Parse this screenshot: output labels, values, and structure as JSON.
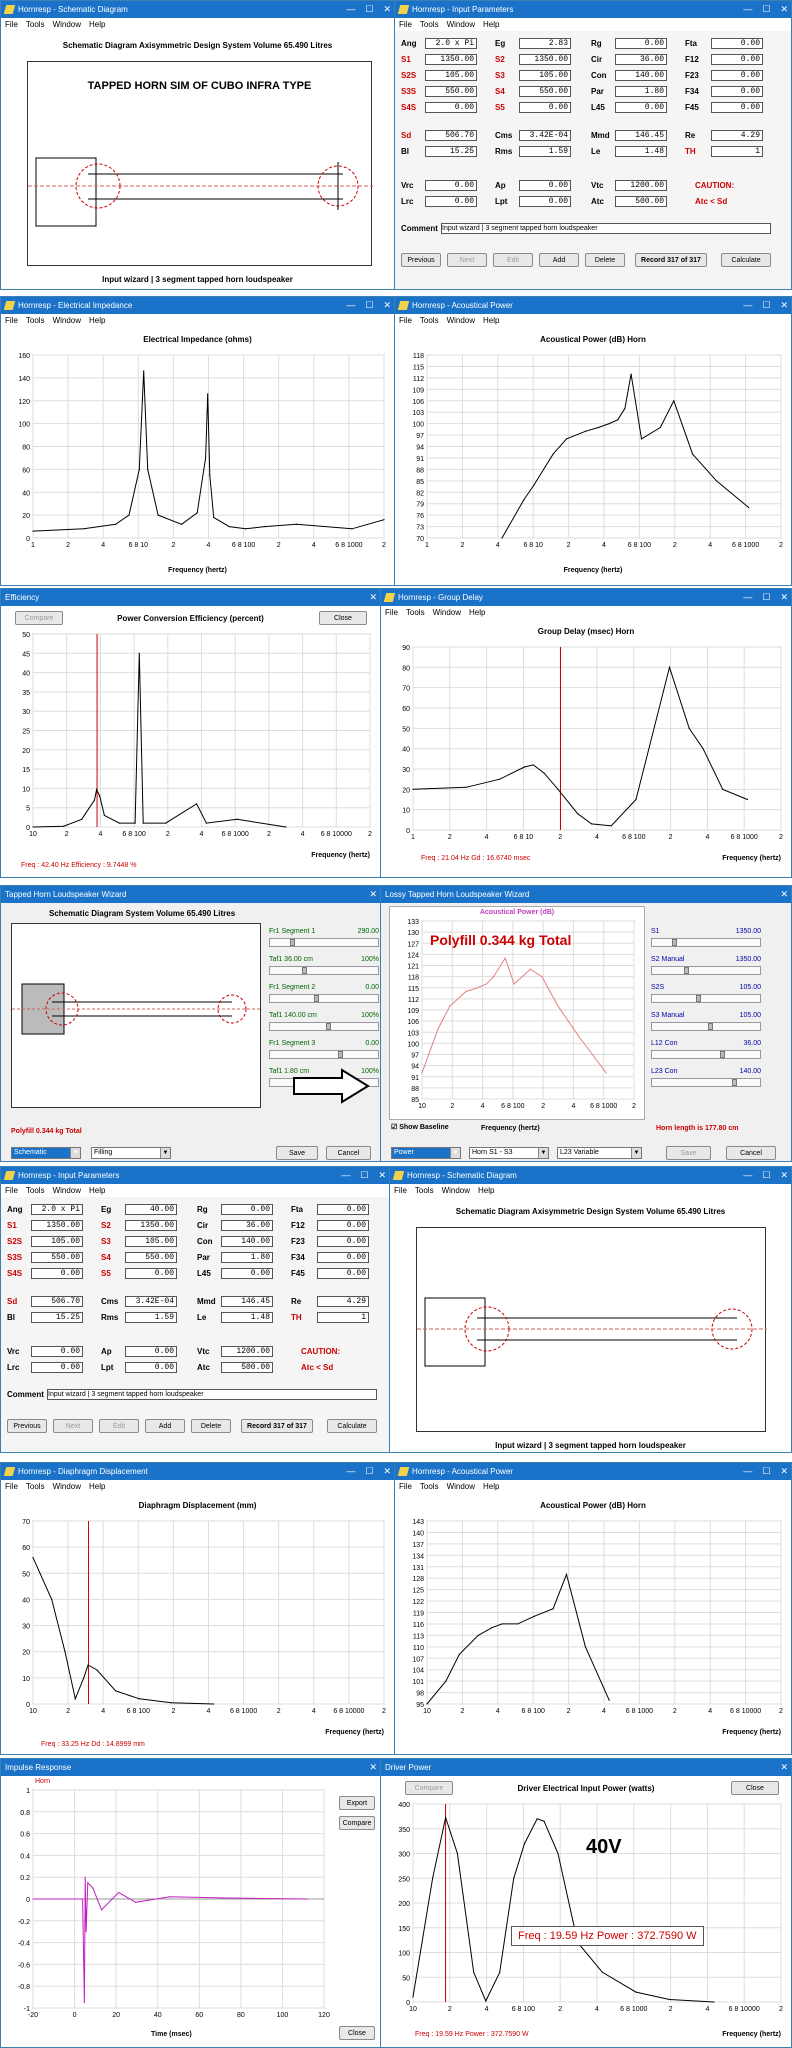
{
  "schematic1": {
    "title": "Hornresp - Schematic Diagram",
    "menu": [
      "File",
      "Tools",
      "Window",
      "Help"
    ],
    "header": "Schematic Diagram   Axisymmetric Design   System Volume 65.490 Litres",
    "label": "TAPPED HORN SIM OF CUBO INFRA TYPE",
    "footer": "Input wizard | 3 segment tapped horn loudspeaker"
  },
  "input1": {
    "title": "Hornresp - Input Parameters",
    "menu": [
      "File",
      "Tools",
      "Window",
      "Help"
    ],
    "rows1": [
      [
        "Ang",
        "2.0 x Pi",
        "Eg",
        "2.83",
        "Rg",
        "0.00",
        "Fta",
        "0.00"
      ],
      [
        "S1",
        "1350.00",
        "S2",
        "1350.00",
        "Cir",
        "36.00",
        "F12",
        "0.00"
      ],
      [
        "S2S",
        "105.00",
        "S3",
        "105.00",
        "Con",
        "140.00",
        "F23",
        "0.00"
      ],
      [
        "S3S",
        "550.00",
        "S4",
        "550.00",
        "Par",
        "1.80",
        "F34",
        "0.00"
      ],
      [
        "S4S",
        "0.00",
        "S5",
        "0.00",
        "L45",
        "0.00",
        "F45",
        "0.00"
      ]
    ],
    "rows2": [
      [
        "Sd",
        "506.70",
        "Cms",
        "3.42E-04",
        "Mmd",
        "146.45",
        "Re",
        "4.29"
      ],
      [
        "Bl",
        "15.25",
        "Rms",
        "1.59",
        "Le",
        "1.48",
        "TH",
        "1"
      ]
    ],
    "rows3": [
      [
        "Vrc",
        "0.00",
        "Ap",
        "0.00",
        "Vtc",
        "1200.00"
      ],
      [
        "Lrc",
        "0.00",
        "Lpt",
        "0.00",
        "Atc",
        "500.00"
      ]
    ],
    "caution": "CAUTION:",
    "caution2": "Atc < Sd",
    "comment_label": "Comment",
    "comment": "Input wizard | 3 segment tapped horn loudspeaker",
    "buttons": [
      "Previous",
      "Next",
      "Edit",
      "Add",
      "Delete"
    ],
    "record": "Record 317 of 317",
    "calc": "Calculate"
  },
  "impedance": {
    "title": "Hornresp - Electrical Impedance",
    "menu": [
      "File",
      "Tools",
      "Window",
      "Help"
    ],
    "chart_title": "Electrical Impedance (ohms)",
    "xlabel": "Frequency (hertz)",
    "yticks": [
      "160",
      "140",
      "120",
      "100",
      "80",
      "60",
      "40",
      "20",
      "0"
    ],
    "xticks": [
      "1",
      "2",
      "4",
      "6 8 10",
      "2",
      "4",
      "6 8 100",
      "2",
      "4",
      "6 8 1000",
      "2"
    ]
  },
  "acoustic1": {
    "title": "Hornresp - Acoustical Power",
    "menu": [
      "File",
      "Tools",
      "Window",
      "Help"
    ],
    "chart_title": "Acoustical Power (dB)   Horn",
    "xlabel": "Frequency (hertz)",
    "yticks": [
      "118",
      "115",
      "112",
      "109",
      "106",
      "103",
      "100",
      "97",
      "94",
      "91",
      "88",
      "85",
      "82",
      "79",
      "76",
      "73",
      "70"
    ],
    "xticks": [
      "1",
      "2",
      "4",
      "6 8 10",
      "2",
      "4",
      "6 8 100",
      "2",
      "4",
      "6 8 1000",
      "2"
    ]
  },
  "efficiency": {
    "title": "Efficiency",
    "compare": "Compare",
    "close": "Close",
    "chart_title": "Power Conversion Efficiency (percent)",
    "xlabel": "Frequency (hertz)",
    "yticks": [
      "50",
      "45",
      "40",
      "35",
      "30",
      "25",
      "20",
      "15",
      "10",
      "5",
      "0"
    ],
    "xticks": [
      "10",
      "2",
      "4",
      "6 8 100",
      "2",
      "4",
      "6 8 1000",
      "2",
      "4",
      "6 8 10000",
      "2"
    ],
    "readout": "Freq : 42.40 Hz    Efficiency : 9.7448 %"
  },
  "group_delay": {
    "title": "Hornresp - Group Delay",
    "menu": [
      "File",
      "Tools",
      "Window",
      "Help"
    ],
    "chart_title": "Group Delay (msec)   Horn",
    "xlabel": "Frequency (hertz)",
    "yticks": [
      "90",
      "80",
      "70",
      "60",
      "50",
      "40",
      "30",
      "20",
      "10",
      "0"
    ],
    "xticks": [
      "1",
      "2",
      "4",
      "6 8 10",
      "2",
      "4",
      "6 8 100",
      "2",
      "4",
      "6 8 1000",
      "2"
    ],
    "readout": "Freq : 21.04 Hz    Gd : 16.6740 msec"
  },
  "wizard": {
    "title": "Tapped Horn Loudspeaker Wizard",
    "header": "Schematic Diagram   System Volume 65.490 Litres",
    "params": [
      [
        "Fr1  Segment 1",
        "290.00"
      ],
      [
        "Taf1  36.00 cm",
        "100%"
      ],
      [
        "Fr1  Segment 2",
        "0.00"
      ],
      [
        "Taf1  140.00 cm",
        "100%"
      ],
      [
        "Fr1  Segment 3",
        "0.00"
      ],
      [
        "Taf1  1.80 cm",
        "100%"
      ]
    ],
    "fill": "Polyfill  0.344 kg  Total",
    "dropdown1": "Schematic",
    "dropdown2": "Filling",
    "save": "Save",
    "cancel": "Cancel"
  },
  "lossy": {
    "title": "Lossy Tapped Horn Loudspeaker Wizard",
    "chart_title": "Acoustical Power (dB)",
    "overlay": "Polyfill   0.344 kg   Total",
    "xlabel": "Frequency (hertz)",
    "show_baseline": "Show Baseline",
    "horn_length": "Horn length is 177.80 cm",
    "yticks": [
      "133",
      "130",
      "127",
      "124",
      "121",
      "118",
      "115",
      "112",
      "109",
      "106",
      "103",
      "100",
      "97",
      "94",
      "91",
      "88",
      "85"
    ],
    "xticks": [
      "10",
      "2",
      "4",
      "6 8 100",
      "2",
      "4",
      "6 8 1000",
      "2"
    ],
    "params": [
      [
        "S1",
        "1350.00"
      ],
      [
        "S2  Manual",
        "1350.00"
      ],
      [
        "S2S",
        "105.00"
      ],
      [
        "S3  Manual",
        "105.00"
      ],
      [
        "L12  Con",
        "36.00"
      ],
      [
        "L23  Con",
        "140.00"
      ]
    ],
    "dropdown1": "Power",
    "dropdown2": "Horn S1 - S3",
    "dropdown3": "L23 Variable",
    "save": "Save",
    "cancel": "Cancel"
  },
  "input2": {
    "title": "Hornresp - Input Parameters",
    "menu": [
      "File",
      "Tools",
      "Window",
      "Help"
    ],
    "rows1": [
      [
        "Ang",
        "2.0 x Pi",
        "Eg",
        "40.00",
        "Rg",
        "0.00",
        "Fta",
        "0.00"
      ],
      [
        "S1",
        "1350.00",
        "S2",
        "1350.00",
        "Cir",
        "36.00",
        "F12",
        "0.00"
      ],
      [
        "S2S",
        "105.00",
        "S3",
        "105.00",
        "Con",
        "140.00",
        "F23",
        "0.00"
      ],
      [
        "S3S",
        "550.00",
        "S4",
        "550.00",
        "Par",
        "1.80",
        "F34",
        "0.00"
      ],
      [
        "S4S",
        "0.00",
        "S5",
        "0.00",
        "L45",
        "0.00",
        "F45",
        "0.00"
      ]
    ],
    "rows2": [
      [
        "Sd",
        "506.70",
        "Cms",
        "3.42E-04",
        "Mmd",
        "146.45",
        "Re",
        "4.29"
      ],
      [
        "Bl",
        "15.25",
        "Rms",
        "1.59",
        "Le",
        "1.48",
        "TH",
        "1"
      ]
    ],
    "rows3": [
      [
        "Vrc",
        "0.00",
        "Ap",
        "0.00",
        "Vtc",
        "1200.00"
      ],
      [
        "Lrc",
        "0.00",
        "Lpt",
        "0.00",
        "Atc",
        "500.00"
      ]
    ],
    "caution": "CAUTION:",
    "caution2": "Atc < Sd",
    "comment_label": "Comment",
    "comment": "Input wizard | 3 segment tapped horn loudspeaker",
    "buttons": [
      "Previous",
      "Next",
      "Edit",
      "Add",
      "Delete"
    ],
    "record": "Record 317 of 317",
    "calc": "Calculate"
  },
  "schematic2": {
    "title": "Hornresp - Schematic Diagram",
    "menu": [
      "File",
      "Tools",
      "Window",
      "Help"
    ],
    "header": "Schematic Diagram   Axisymmetric Design   System Volume 65.490 Litres",
    "footer": "Input wizard | 3 segment tapped horn loudspeaker"
  },
  "displacement": {
    "title": "Hornresp - Diaphragm Displacement",
    "menu": [
      "File",
      "Tools",
      "Window",
      "Help"
    ],
    "chart_title": "Diaphragm Displacement (mm)",
    "xlabel": "Frequency (hertz)",
    "yticks": [
      "70",
      "60",
      "50",
      "40",
      "30",
      "20",
      "10",
      "0"
    ],
    "xticks": [
      "10",
      "2",
      "4",
      "6 8 100",
      "2",
      "4",
      "6 8 1000",
      "2",
      "4",
      "6 8 10000",
      "2"
    ],
    "readout": "Freq : 33.25 Hz    Dd : 14.8999 mm"
  },
  "acoustic2": {
    "title": "Hornresp - Acoustical Power",
    "menu": [
      "File",
      "Tools",
      "Window",
      "Help"
    ],
    "chart_title": "Acoustical Power (dB)   Horn",
    "xlabel": "Frequency (hertz)",
    "yticks": [
      "143",
      "140",
      "137",
      "134",
      "131",
      "128",
      "125",
      "122",
      "119",
      "116",
      "113",
      "110",
      "107",
      "104",
      "101",
      "98",
      "95"
    ],
    "xticks": [
      "10",
      "2",
      "4",
      "6 8 100",
      "2",
      "4",
      "6 8 1000",
      "2",
      "4",
      "6 8 10000",
      "2"
    ]
  },
  "impulse": {
    "title": "Impulse Response",
    "label": "Horn",
    "export": "Export",
    "compare": "Compare",
    "close": "Close",
    "xlabel": "Time (msec)",
    "yticks": [
      "1",
      "0.8",
      "0.6",
      "0.4",
      "0.2",
      "0",
      "-0.2",
      "-0.4",
      "-0.6",
      "-0.8",
      "-1"
    ],
    "xticks": [
      "-20",
      "0",
      "20",
      "40",
      "60",
      "80",
      "100",
      "120"
    ]
  },
  "driver_power": {
    "title": "Driver Power",
    "compare": "Compare",
    "close": "Close",
    "chart_title": "Driver Electrical Input Power (watts)",
    "overlay": "40V",
    "readout_box": "Freq : 19.59 Hz    Power : 372.7590 W",
    "readout": "Freq : 19.59 Hz    Power : 372.7590 W",
    "xlabel": "Frequency (hertz)",
    "yticks": [
      "400",
      "350",
      "300",
      "250",
      "200",
      "150",
      "100",
      "50",
      "0"
    ],
    "xticks": [
      "10",
      "2",
      "4",
      "6 8 100",
      "2",
      "4",
      "6 8 1000",
      "2",
      "4",
      "6 8 10000",
      "2"
    ]
  },
  "chart_data": [
    {
      "type": "line",
      "title": "Electrical Impedance (ohms)",
      "xlabel": "Frequency (hertz)",
      "ylabel": "",
      "xscale": "log",
      "xlim": [
        1,
        2000
      ],
      "ylim": [
        0,
        160
      ],
      "x": [
        1,
        3,
        6,
        8,
        10,
        11,
        12,
        15,
        25,
        35,
        42,
        44,
        46,
        50,
        70,
        100,
        150,
        300,
        1000,
        2000
      ],
      "y": [
        6,
        8,
        12,
        20,
        60,
        146,
        60,
        20,
        12,
        22,
        70,
        126,
        55,
        18,
        10,
        8,
        10,
        12,
        8,
        16
      ]
    },
    {
      "type": "line",
      "title": "Acoustical Power (dB)   Horn",
      "xlabel": "Frequency (hertz)",
      "xscale": "log",
      "xlim": [
        1,
        2000
      ],
      "ylim": [
        70,
        118
      ],
      "x": [
        5,
        8,
        10,
        15,
        20,
        30,
        40,
        50,
        60,
        70,
        80,
        100,
        150,
        200,
        300,
        500,
        1000
      ],
      "y": [
        70,
        80,
        84,
        92,
        96,
        98,
        99,
        100,
        101,
        104,
        113,
        96,
        99,
        106,
        92,
        85,
        78
      ]
    },
    {
      "type": "line",
      "title": "Power Conversion Efficiency (percent)",
      "xlabel": "Frequency (hertz)",
      "xscale": "log",
      "xlim": [
        10,
        20000
      ],
      "ylim": [
        0,
        50
      ],
      "x": [
        10,
        20,
        30,
        40,
        42,
        45,
        50,
        70,
        100,
        110,
        120,
        200,
        400,
        500,
        1000,
        3000
      ],
      "y": [
        0,
        0.2,
        2,
        7,
        9.7,
        8,
        3,
        1,
        1,
        45,
        1,
        1,
        6,
        1,
        2,
        0
      ]
    },
    {
      "type": "line",
      "title": "Group Delay (msec)   Horn",
      "xlabel": "Frequency (hertz)",
      "xscale": "log",
      "xlim": [
        1,
        2000
      ],
      "ylim": [
        0,
        90
      ],
      "x": [
        1,
        3,
        6,
        10,
        12,
        15,
        20,
        30,
        40,
        60,
        100,
        200,
        300,
        400,
        600,
        1000
      ],
      "y": [
        20,
        21,
        25,
        31,
        32,
        28,
        20,
        8,
        3,
        2,
        15,
        80,
        50,
        40,
        20,
        15
      ]
    },
    {
      "type": "line",
      "title": "Acoustical Power (dB)",
      "xlabel": "Frequency (hertz)",
      "xscale": "log",
      "xlim": [
        10,
        2000
      ],
      "ylim": [
        85,
        133
      ],
      "x": [
        10,
        15,
        20,
        30,
        40,
        50,
        60,
        80,
        100,
        150,
        200,
        300,
        500,
        1000
      ],
      "y": [
        92,
        104,
        110,
        114,
        115,
        116,
        118,
        123,
        116,
        120,
        118,
        110,
        102,
        92
      ]
    },
    {
      "type": "line",
      "title": "Diaphragm Displacement (mm)",
      "xlabel": "Frequency (hertz)",
      "xscale": "log",
      "xlim": [
        10,
        20000
      ],
      "ylim": [
        0,
        70
      ],
      "x": [
        10,
        15,
        20,
        25,
        30,
        33,
        40,
        60,
        100,
        200,
        500
      ],
      "y": [
        56,
        40,
        20,
        2,
        10,
        14.9,
        13,
        5,
        2,
        0.5,
        0
      ]
    },
    {
      "type": "line",
      "title": "Acoustical Power (dB)   Horn",
      "xlabel": "Frequency (hertz)",
      "xscale": "log",
      "xlim": [
        10,
        20000
      ],
      "ylim": [
        95,
        143
      ],
      "x": [
        10,
        15,
        20,
        30,
        40,
        50,
        70,
        100,
        150,
        200,
        300,
        500
      ],
      "y": [
        95,
        101,
        108,
        113,
        115,
        116,
        116,
        118,
        120,
        129,
        110,
        96
      ]
    },
    {
      "type": "line",
      "title": "Impulse Response",
      "xlabel": "Time (msec)",
      "xlim": [
        -30,
        140
      ],
      "ylim": [
        -1,
        1
      ],
      "x": [
        -30,
        -1,
        0,
        0.5,
        1,
        2,
        5,
        10,
        20,
        30,
        50,
        80,
        130
      ],
      "y": [
        0,
        0,
        -0.95,
        0.2,
        -0.3,
        0.15,
        0.1,
        -0.1,
        0.06,
        -0.03,
        0.02,
        0.01,
        0
      ]
    },
    {
      "type": "line",
      "title": "Driver Electrical Input Power (watts)",
      "xlabel": "Frequency (hertz)",
      "xscale": "log",
      "xlim": [
        10,
        20000
      ],
      "ylim": [
        0,
        400
      ],
      "x": [
        10,
        15,
        19.59,
        25,
        35,
        45,
        60,
        80,
        100,
        130,
        150,
        200,
        300,
        500,
        1000,
        2000,
        5000
      ],
      "y": [
        10,
        250,
        372.76,
        300,
        60,
        2,
        60,
        250,
        320,
        370,
        365,
        300,
        120,
        60,
        20,
        5,
        0
      ]
    }
  ]
}
